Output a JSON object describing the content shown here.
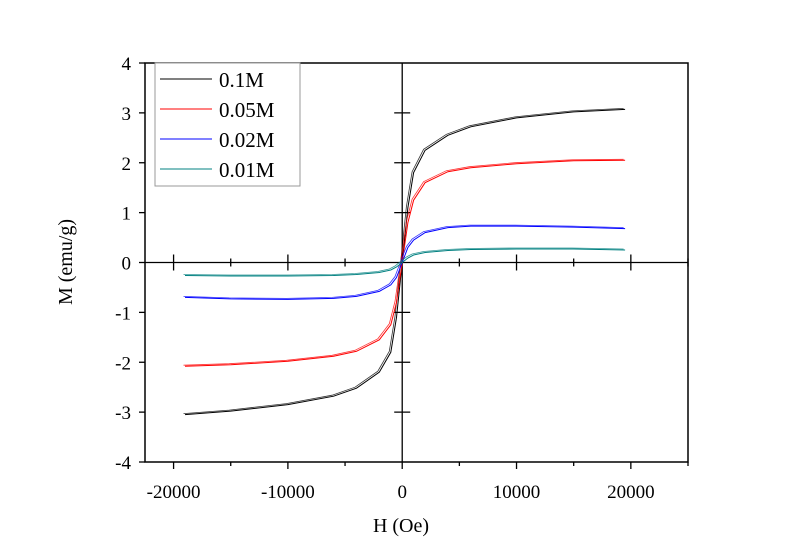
{
  "chart_data": {
    "type": "line",
    "title": "",
    "xlabel": "H (Oe)",
    "ylabel": "M (emu/g)",
    "xlim": [
      -22500,
      25000
    ],
    "ylim": [
      -4,
      4
    ],
    "xticks": [
      -20000,
      -10000,
      0,
      10000,
      20000
    ],
    "xtick_labels": [
      "-20000",
      "-10000",
      "0",
      "10000",
      "20000"
    ],
    "yticks": [
      -4,
      -3,
      -2,
      -1,
      0,
      1,
      2,
      3,
      4
    ],
    "ytick_labels": [
      "-4",
      "-3",
      "-2",
      "-1",
      "0",
      "1",
      "2",
      "3",
      "4"
    ],
    "grid": false,
    "legend_position": "top-left",
    "x": [
      -19000,
      -15000,
      -10000,
      -6000,
      -4000,
      -2000,
      -1000,
      -500,
      0,
      500,
      1000,
      2000,
      4000,
      6000,
      10000,
      15000,
      19500
    ],
    "series": [
      {
        "name": "0.1M",
        "color": "#000000",
        "values": [
          -3.05,
          -2.98,
          -2.85,
          -2.68,
          -2.52,
          -2.2,
          -1.8,
          -1.1,
          0,
          1.1,
          1.8,
          2.25,
          2.55,
          2.72,
          2.9,
          3.02,
          3.07
        ]
      },
      {
        "name": "0.05M",
        "color": "#ff0000",
        "values": [
          -2.08,
          -2.05,
          -1.98,
          -1.88,
          -1.78,
          -1.55,
          -1.25,
          -0.8,
          0,
          0.8,
          1.25,
          1.6,
          1.82,
          1.9,
          1.98,
          2.04,
          2.05
        ]
      },
      {
        "name": "0.02M",
        "color": "#0000ff",
        "values": [
          -0.7,
          -0.73,
          -0.74,
          -0.72,
          -0.68,
          -0.58,
          -0.45,
          -0.3,
          0,
          0.3,
          0.45,
          0.6,
          0.7,
          0.73,
          0.73,
          0.71,
          0.68
        ]
      },
      {
        "name": "0.01M",
        "color": "#008080",
        "values": [
          -0.26,
          -0.27,
          -0.27,
          -0.26,
          -0.24,
          -0.2,
          -0.15,
          -0.09,
          0,
          0.09,
          0.15,
          0.2,
          0.24,
          0.26,
          0.27,
          0.27,
          0.25
        ]
      }
    ]
  }
}
